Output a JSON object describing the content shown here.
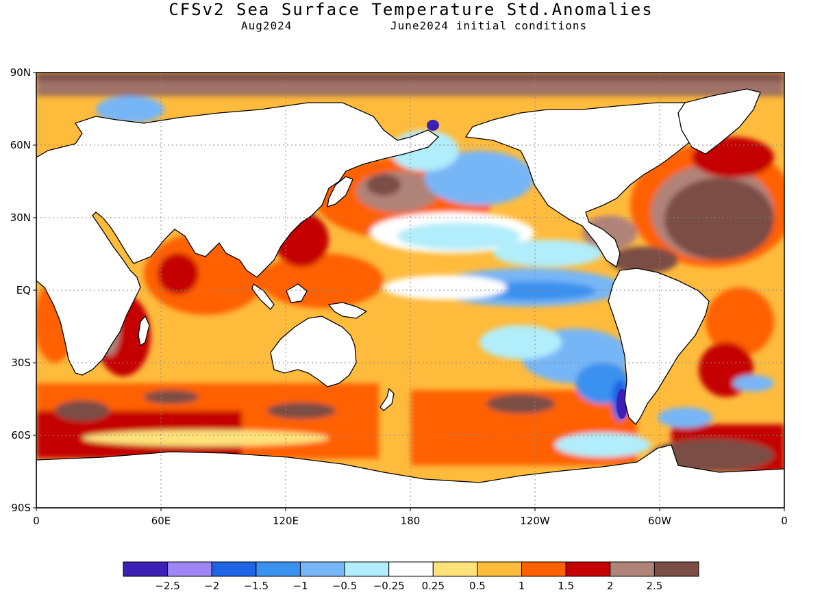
{
  "header": {
    "title": "CFSv2 Sea Surface Temperature Std.Anomalies",
    "valid_month": "Aug2024",
    "init": "June2024 initial conditions"
  },
  "axes": {
    "lat_labels": [
      "90N",
      "60N",
      "30N",
      "EQ",
      "30S",
      "60S",
      "90S"
    ],
    "lat_values": [
      90,
      60,
      30,
      0,
      -30,
      -60,
      -90
    ],
    "lon_labels": [
      "0",
      "60E",
      "120E",
      "180",
      "120W",
      "60W",
      "0"
    ],
    "lon_values": [
      0,
      60,
      120,
      180,
      240,
      300,
      360
    ],
    "lon_range": [
      0,
      360
    ],
    "lat_range": [
      -90,
      90
    ],
    "gridlines": "dotted"
  },
  "colorbar": {
    "colors": [
      "#3c1fb4",
      "#9f86f6",
      "#1f64e6",
      "#3b91f0",
      "#77b6f6",
      "#b1edfa",
      "#ffffff",
      "#ffe27a",
      "#ffbb3c",
      "#ff6000",
      "#c40000",
      "#b08379",
      "#7a4e44"
    ],
    "tick_labels": [
      "−2.5",
      "−2",
      "−1.5",
      "−1",
      "−0.5",
      "−0.25",
      "0.25",
      "0.5",
      "1",
      "1.5",
      "2",
      "2.5"
    ]
  },
  "map_colors": {
    "land": "#ffffff",
    "coast": "#000000",
    "ocean_base": "#ffbb3c"
  }
}
